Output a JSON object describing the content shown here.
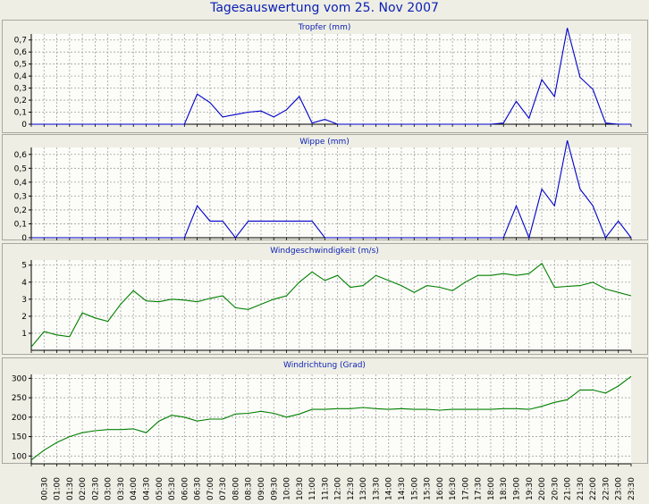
{
  "title": "Tagesauswertung vom 25. Nov 2007",
  "time_labels": [
    "00:30",
    "01:00",
    "01:30",
    "02:00",
    "02:30",
    "03:00",
    "03:30",
    "04:00",
    "04:30",
    "05:00",
    "05:30",
    "06:00",
    "06:30",
    "07:00",
    "07:30",
    "08:00",
    "08:30",
    "09:00",
    "09:30",
    "10:00",
    "10:30",
    "11:00",
    "11:30",
    "12:00",
    "12:30",
    "13:00",
    "13:30",
    "14:00",
    "14:30",
    "15:00",
    "15:30",
    "16:00",
    "16:30",
    "17:00",
    "17:30",
    "18:00",
    "18:30",
    "19:00",
    "19:30",
    "20:00",
    "20:30",
    "21:00",
    "21:30",
    "22:00",
    "22:30",
    "23:00",
    "23:30"
  ],
  "colors": {
    "panel_bg": "#eeeee4",
    "plot_bg": "#fcfcf8",
    "grid": "#a0a0a0",
    "blue": "#0000cc",
    "green": "#008000",
    "title": "#0a1eb4"
  },
  "chart_data": [
    {
      "type": "line",
      "title": "Tropfer (mm)",
      "color": "blue",
      "ylim": [
        0,
        0.75
      ],
      "yticks": [
        0,
        0.1,
        0.2,
        0.3,
        0.4,
        0.5,
        0.6,
        0.7
      ],
      "ytick_labels": [
        "0",
        "0,1",
        "0,2",
        "0,3",
        "0,4",
        "0,5",
        "0,6",
        "0,7"
      ],
      "x": [
        "00:00",
        "00:30",
        "01:00",
        "01:30",
        "02:00",
        "02:30",
        "03:00",
        "03:30",
        "04:00",
        "04:30",
        "05:00",
        "05:30",
        "06:00",
        "06:30",
        "07:00",
        "07:30",
        "08:00",
        "08:30",
        "09:00",
        "09:30",
        "10:00",
        "10:30",
        "11:00",
        "11:30",
        "12:00",
        "12:30",
        "13:00",
        "13:30",
        "14:00",
        "14:30",
        "15:00",
        "15:30",
        "16:00",
        "16:30",
        "17:00",
        "17:30",
        "18:00",
        "18:30",
        "19:00",
        "19:30",
        "20:00",
        "20:30",
        "21:00",
        "21:30",
        "22:00",
        "22:30",
        "23:00",
        "23:30"
      ],
      "values": [
        0,
        0,
        0,
        0,
        0,
        0,
        0,
        0,
        0,
        0,
        0,
        0,
        0,
        0.25,
        0.18,
        0.06,
        0.08,
        0.1,
        0.11,
        0.06,
        0.12,
        0.23,
        0.01,
        0.04,
        0,
        0,
        0,
        0,
        0,
        0,
        0,
        0,
        0,
        0,
        0,
        0,
        0,
        0.01,
        0.19,
        0.05,
        0.37,
        0.23,
        0.8,
        0.39,
        0.29,
        0.01,
        0,
        0
      ]
    },
    {
      "type": "line",
      "title": "Wippe (mm)",
      "color": "blue",
      "ylim": [
        0,
        0.65
      ],
      "yticks": [
        0,
        0.1,
        0.2,
        0.3,
        0.4,
        0.5,
        0.6
      ],
      "ytick_labels": [
        "0",
        "0,1",
        "0,2",
        "0,3",
        "0,4",
        "0,5",
        "0,6"
      ],
      "x": [
        "00:00",
        "00:30",
        "01:00",
        "01:30",
        "02:00",
        "02:30",
        "03:00",
        "03:30",
        "04:00",
        "04:30",
        "05:00",
        "05:30",
        "06:00",
        "06:30",
        "07:00",
        "07:30",
        "08:00",
        "08:30",
        "09:00",
        "09:30",
        "10:00",
        "10:30",
        "11:00",
        "11:30",
        "12:00",
        "12:30",
        "13:00",
        "13:30",
        "14:00",
        "14:30",
        "15:00",
        "15:30",
        "16:00",
        "16:30",
        "17:00",
        "17:30",
        "18:00",
        "18:30",
        "19:00",
        "19:30",
        "20:00",
        "20:30",
        "21:00",
        "21:30",
        "22:00",
        "22:30",
        "23:00",
        "23:30"
      ],
      "values": [
        0,
        0,
        0,
        0,
        0,
        0,
        0,
        0,
        0,
        0,
        0,
        0,
        0,
        0.23,
        0.12,
        0.12,
        0,
        0.12,
        0.12,
        0.12,
        0.12,
        0.12,
        0.12,
        0,
        0,
        0,
        0,
        0,
        0,
        0,
        0,
        0,
        0,
        0,
        0,
        0,
        0,
        0,
        0.23,
        0,
        0.35,
        0.23,
        0.7,
        0.35,
        0.23,
        0,
        0.12,
        0
      ]
    },
    {
      "type": "line",
      "title": "Windgeschwindigkeit (m/s)",
      "color": "green",
      "ylim": [
        0,
        5.3
      ],
      "yticks": [
        1,
        2,
        3,
        4,
        5
      ],
      "ytick_labels": [
        "1",
        "2",
        "3",
        "4",
        "5"
      ],
      "x": [
        "00:00",
        "00:30",
        "01:00",
        "01:30",
        "02:00",
        "02:30",
        "03:00",
        "03:30",
        "04:00",
        "04:30",
        "05:00",
        "05:30",
        "06:00",
        "06:30",
        "07:00",
        "07:30",
        "08:00",
        "08:30",
        "09:00",
        "09:30",
        "10:00",
        "10:30",
        "11:00",
        "11:30",
        "12:00",
        "12:30",
        "13:00",
        "13:30",
        "14:00",
        "14:30",
        "15:00",
        "15:30",
        "16:00",
        "16:30",
        "17:00",
        "17:30",
        "18:00",
        "18:30",
        "19:00",
        "19:30",
        "20:00",
        "20:30",
        "21:00",
        "21:30",
        "22:00",
        "22:30",
        "23:00",
        "23:30"
      ],
      "values": [
        0.2,
        1.1,
        0.9,
        0.8,
        2.2,
        1.9,
        1.7,
        2.7,
        3.5,
        2.9,
        2.85,
        3.0,
        2.95,
        2.85,
        3.05,
        3.2,
        2.5,
        2.4,
        2.7,
        3.0,
        3.2,
        4.0,
        4.6,
        4.1,
        4.4,
        3.7,
        3.8,
        4.4,
        4.1,
        3.8,
        3.4,
        3.8,
        3.7,
        3.5,
        4.0,
        4.4,
        4.4,
        4.5,
        4.4,
        4.5,
        5.1,
        3.7,
        3.75,
        3.8,
        4.0,
        3.6,
        3.4,
        3.2
      ]
    },
    {
      "type": "line",
      "title": "Windrichtung (Grad)",
      "color": "green",
      "ylim": [
        80,
        310
      ],
      "yticks": [
        100,
        150,
        200,
        250,
        300
      ],
      "ytick_labels": [
        "100",
        "150",
        "200",
        "250",
        "300"
      ],
      "x": [
        "00:00",
        "00:30",
        "01:00",
        "01:30",
        "02:00",
        "02:30",
        "03:00",
        "03:30",
        "04:00",
        "04:30",
        "05:00",
        "05:30",
        "06:00",
        "06:30",
        "07:00",
        "07:30",
        "08:00",
        "08:30",
        "09:00",
        "09:30",
        "10:00",
        "10:30",
        "11:00",
        "11:30",
        "12:00",
        "12:30",
        "13:00",
        "13:30",
        "14:00",
        "14:30",
        "15:00",
        "15:30",
        "16:00",
        "16:30",
        "17:00",
        "17:30",
        "18:00",
        "18:30",
        "19:00",
        "19:30",
        "20:00",
        "20:30",
        "21:00",
        "21:30",
        "22:00",
        "22:30",
        "23:00",
        "23:30"
      ],
      "values": [
        90,
        115,
        135,
        150,
        160,
        165,
        168,
        168,
        170,
        160,
        190,
        205,
        200,
        190,
        195,
        195,
        208,
        210,
        215,
        210,
        200,
        208,
        220,
        220,
        222,
        222,
        225,
        222,
        220,
        222,
        220,
        220,
        218,
        220,
        220,
        220,
        220,
        222,
        222,
        220,
        228,
        238,
        245,
        270,
        270,
        262,
        280,
        305
      ]
    }
  ]
}
